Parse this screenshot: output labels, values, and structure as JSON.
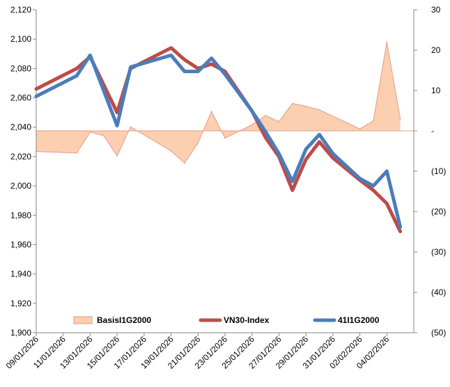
{
  "chart_data": {
    "type": "line",
    "title": "",
    "x": [
      "09/01/2026",
      "10/01/2026",
      "11/01/2026",
      "12/01/2026",
      "13/01/2026",
      "14/01/2026",
      "15/01/2026",
      "16/01/2026",
      "17/01/2026",
      "18/01/2026",
      "19/01/2026",
      "20/01/2026",
      "21/01/2026",
      "22/01/2026",
      "23/01/2026",
      "24/01/2026",
      "25/01/2026",
      "26/01/2026",
      "27/01/2026",
      "28/01/2026",
      "29/01/2026",
      "30/01/2026",
      "31/01/2026",
      "01/02/2026",
      "02/02/2026",
      "03/02/2026",
      "04/02/2026",
      "05/02/2026"
    ],
    "x_tick_labels": [
      "09/01/2026",
      "11/01/2026",
      "13/01/2026",
      "15/01/2026",
      "17/01/2026",
      "19/01/2026",
      "21/01/2026",
      "23/01/2026",
      "25/01/2026",
      "27/01/2026",
      "29/01/2026",
      "31/01/2026",
      "02/02/2026",
      "04/02/2026"
    ],
    "y_left": {
      "min": 1900,
      "max": 2120,
      "ticks": [
        "1,900",
        "1,920",
        "1,940",
        "1,960",
        "1,980",
        "2,000",
        "2,020",
        "2,040",
        "2,060",
        "2,080",
        "2,100",
        "2,120"
      ]
    },
    "y_right": {
      "min": -50,
      "max": 30,
      "ticks": [
        "(50)",
        "(40)",
        "(30)",
        "(20)",
        "(10)",
        "-",
        "10",
        "20",
        "30"
      ]
    },
    "series": [
      {
        "name": "BasisI1G2000",
        "type": "area",
        "axis": "right",
        "color": "#fbcfaf",
        "edge_color": "#e49b8a",
        "points": [
          [
            "09/01/2026",
            -5.1
          ],
          [
            "12/01/2026",
            -5.5
          ],
          [
            "13/01/2026",
            -0.3
          ],
          [
            "14/01/2026",
            -1.2
          ],
          [
            "15/01/2026",
            -6.2
          ],
          [
            "16/01/2026",
            1.0
          ],
          [
            "19/01/2026",
            -5.0
          ],
          [
            "20/01/2026",
            -8.0
          ],
          [
            "21/01/2026",
            -3.0
          ],
          [
            "22/01/2026",
            4.8
          ],
          [
            "23/01/2026",
            -1.8
          ],
          [
            "25/01/2026",
            1.5
          ],
          [
            "26/01/2026",
            3.8
          ],
          [
            "27/01/2026",
            2.3
          ],
          [
            "28/01/2026",
            6.8
          ],
          [
            "29/01/2026",
            6.1
          ],
          [
            "30/01/2026",
            5.2
          ],
          [
            "02/02/2026",
            0.5
          ],
          [
            "03/02/2026",
            2.5
          ],
          [
            "04/02/2026",
            22.0
          ],
          [
            "05/02/2026",
            3.0
          ]
        ]
      },
      {
        "name": "VN30-Index",
        "type": "line",
        "axis": "left",
        "color": "#be4b48",
        "points": [
          [
            "09/01/2026",
            2066
          ],
          [
            "12/01/2026",
            2080
          ],
          [
            "13/01/2026",
            2088
          ],
          [
            "15/01/2026",
            2050
          ],
          [
            "16/01/2026",
            2080
          ],
          [
            "19/01/2026",
            2094
          ],
          [
            "20/01/2026",
            2086
          ],
          [
            "21/01/2026",
            2080
          ],
          [
            "22/01/2026",
            2083
          ],
          [
            "23/01/2026",
            2078
          ],
          [
            "25/01/2026",
            2051
          ],
          [
            "26/01/2026",
            2033
          ],
          [
            "27/01/2026",
            2020
          ],
          [
            "28/01/2026",
            1997
          ],
          [
            "29/01/2026",
            2018
          ],
          [
            "30/01/2026",
            2030
          ],
          [
            "31/01/2026",
            2019
          ],
          [
            "02/02/2026",
            2004
          ],
          [
            "03/02/2026",
            1997
          ],
          [
            "04/02/2026",
            1988
          ],
          [
            "05/02/2026",
            1969
          ]
        ]
      },
      {
        "name": "41I1G2000",
        "type": "line",
        "axis": "left",
        "color": "#4a7dbb",
        "points": [
          [
            "09/01/2026",
            2061
          ],
          [
            "12/01/2026",
            2075
          ],
          [
            "13/01/2026",
            2089
          ],
          [
            "15/01/2026",
            2041
          ],
          [
            "16/01/2026",
            2081
          ],
          [
            "19/01/2026",
            2089
          ],
          [
            "20/01/2026",
            2078
          ],
          [
            "21/01/2026",
            2078
          ],
          [
            "22/01/2026",
            2087
          ],
          [
            "23/01/2026",
            2076
          ],
          [
            "25/01/2026",
            2051
          ],
          [
            "26/01/2026",
            2037
          ],
          [
            "27/01/2026",
            2022
          ],
          [
            "28/01/2026",
            2003
          ],
          [
            "29/01/2026",
            2025
          ],
          [
            "30/01/2026",
            2035
          ],
          [
            "31/01/2026",
            2022
          ],
          [
            "02/02/2026",
            2005
          ],
          [
            "03/02/2026",
            2000
          ],
          [
            "04/02/2026",
            2010
          ],
          [
            "05/02/2026",
            1972
          ]
        ]
      }
    ],
    "legend": {
      "placement": "bottom",
      "items": [
        {
          "label": "BasisI1G2000",
          "marker": "area"
        },
        {
          "label": "VN30-Index",
          "marker": "line"
        },
        {
          "label": "41I1G2000",
          "marker": "line"
        }
      ]
    },
    "grid": false
  }
}
